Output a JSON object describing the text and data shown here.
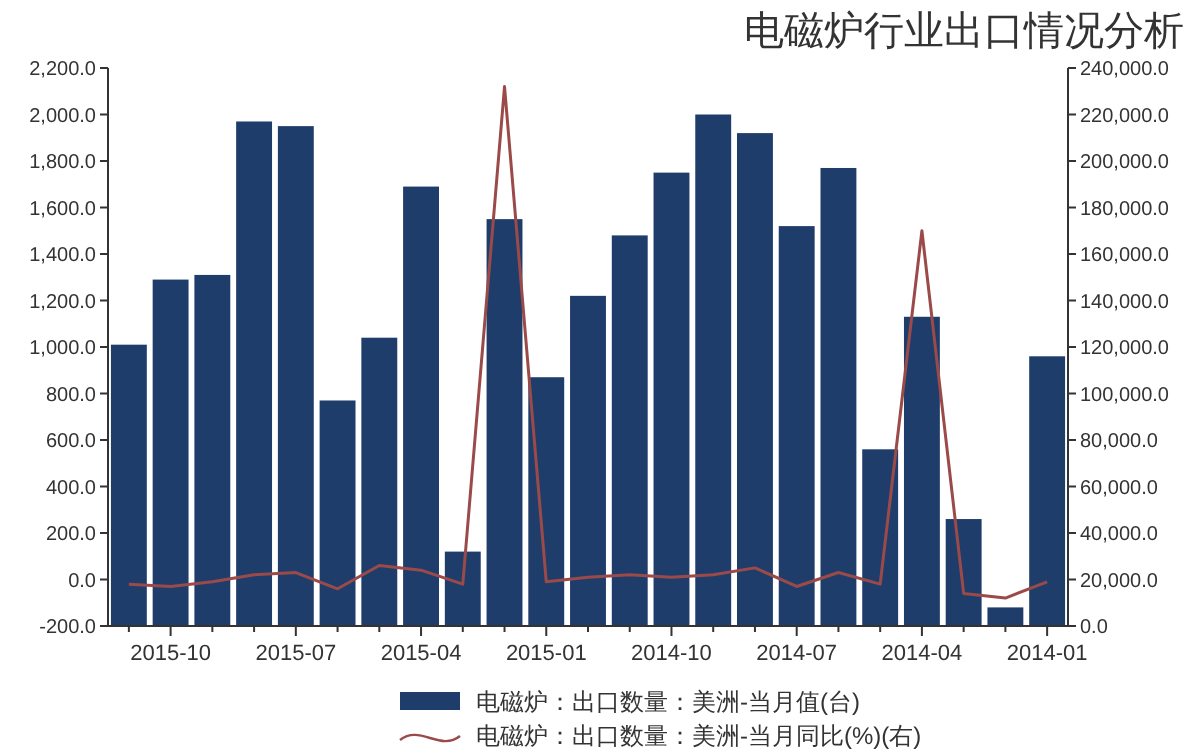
{
  "chart_data": {
    "type": "bar",
    "title": "电磁炉行业出口情况分析",
    "categories": [
      null,
      "2015-10",
      null,
      null,
      "2015-07",
      null,
      null,
      "2015-04",
      null,
      null,
      "2015-01",
      null,
      null,
      "2014-10",
      null,
      null,
      "2014-07",
      null,
      null,
      "2014-04",
      null,
      null,
      "2014-01"
    ],
    "series": [
      {
        "name": "电磁炉：出口数量：美洲-当月值(台)",
        "color": "#1f3d6b",
        "values": [
          121000,
          149000,
          151000,
          217000,
          215000,
          97000,
          124000,
          189000,
          32000,
          175000,
          107000,
          142000,
          168000,
          195000,
          220000,
          212000,
          172000,
          197000,
          76000,
          133000,
          46000,
          8000,
          116000
        ]
      },
      {
        "name": "电磁炉：出口数量：美洲-当月同比(%)(右)",
        "type": "line",
        "axis": "y2",
        "color": "#9b4a4a",
        "values": [
          -20,
          -30,
          -10,
          20,
          30,
          -40,
          60,
          40,
          -20,
          2120,
          -10,
          10,
          20,
          10,
          20,
          50,
          -30,
          30,
          -20,
          1500,
          -60,
          -80,
          -10
        ]
      }
    ],
    "ylim": [
      0,
      240000
    ],
    "yticks": [
      {
        "value": 0,
        "label": "0.0"
      },
      {
        "value": 20000,
        "label": "20,000.0"
      },
      {
        "value": 40000,
        "label": "40,000.0"
      },
      {
        "value": 60000,
        "label": "60,000.0"
      },
      {
        "value": 80000,
        "label": "80,000.0"
      },
      {
        "value": 100000,
        "label": "100,000.0"
      },
      {
        "value": 120000,
        "label": "120,000.0"
      },
      {
        "value": 140000,
        "label": "140,000.0"
      },
      {
        "value": 160000,
        "label": "160,000.0"
      },
      {
        "value": 180000,
        "label": "180,000.0"
      },
      {
        "value": 200000,
        "label": "200,000.0"
      },
      {
        "value": 220000,
        "label": "220,000.0"
      },
      {
        "value": 240000,
        "label": "240,000.0"
      }
    ],
    "y2lim": [
      -200,
      2200
    ],
    "y2ticks": [
      {
        "value": -200,
        "label": "-200.0"
      },
      {
        "value": 0,
        "label": "0.0"
      },
      {
        "value": 200,
        "label": "200.0"
      },
      {
        "value": 400,
        "label": "400.0"
      },
      {
        "value": 600,
        "label": "600.0"
      },
      {
        "value": 800,
        "label": "800.0"
      },
      {
        "value": 1000,
        "label": "1,000.0"
      },
      {
        "value": 1200,
        "label": "1,200.0"
      },
      {
        "value": 1400,
        "label": "1,400.0"
      },
      {
        "value": 1600,
        "label": "1,600.0"
      },
      {
        "value": 1800,
        "label": "1,800.0"
      },
      {
        "value": 2000,
        "label": "2,000.0"
      },
      {
        "value": 2200,
        "label": "2,200.0"
      }
    ],
    "legend": "bottom",
    "grid": false
  }
}
